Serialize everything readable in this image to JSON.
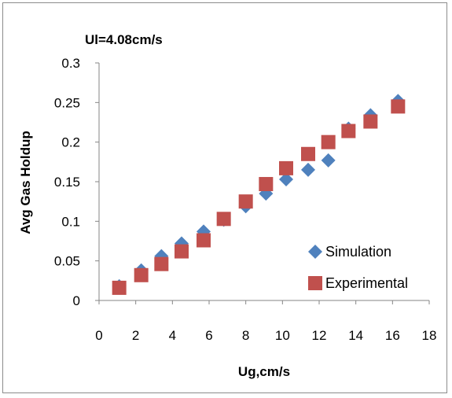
{
  "chart_data": {
    "type": "scatter",
    "title": "Ul=4.08cm/s",
    "xlabel": "Ug,cm/s",
    "ylabel": "Avg Gas Holdup",
    "xlim": [
      0,
      18
    ],
    "ylim": [
      0,
      0.3
    ],
    "x_ticks": [
      "0",
      "2",
      "4",
      "6",
      "8",
      "10",
      "12",
      "14",
      "16",
      "18"
    ],
    "y_ticks": [
      "0",
      "0.05",
      "0.1",
      "0.15",
      "0.2",
      "0.25",
      "0.3"
    ],
    "grid": false,
    "legend_position": "bottom-right",
    "series": [
      {
        "name": "Simulation",
        "marker": "diamond",
        "color": "#4F81BD",
        "points": [
          {
            "x": 1.1,
            "y": 0.018
          },
          {
            "x": 2.3,
            "y": 0.038
          },
          {
            "x": 3.4,
            "y": 0.056
          },
          {
            "x": 4.5,
            "y": 0.072
          },
          {
            "x": 5.7,
            "y": 0.087
          },
          {
            "x": 6.8,
            "y": 0.102
          },
          {
            "x": 8.0,
            "y": 0.119
          },
          {
            "x": 9.1,
            "y": 0.135
          },
          {
            "x": 10.2,
            "y": 0.153
          },
          {
            "x": 11.4,
            "y": 0.165
          },
          {
            "x": 12.5,
            "y": 0.177
          },
          {
            "x": 13.6,
            "y": 0.217
          },
          {
            "x": 14.8,
            "y": 0.234
          },
          {
            "x": 16.3,
            "y": 0.252
          }
        ]
      },
      {
        "name": "Experimental",
        "marker": "square",
        "color": "#C0504D",
        "points": [
          {
            "x": 1.1,
            "y": 0.016
          },
          {
            "x": 2.3,
            "y": 0.032
          },
          {
            "x": 3.4,
            "y": 0.046
          },
          {
            "x": 4.5,
            "y": 0.062
          },
          {
            "x": 5.7,
            "y": 0.076
          },
          {
            "x": 6.8,
            "y": 0.103
          },
          {
            "x": 8.0,
            "y": 0.125
          },
          {
            "x": 9.1,
            "y": 0.147
          },
          {
            "x": 10.2,
            "y": 0.167
          },
          {
            "x": 11.4,
            "y": 0.185
          },
          {
            "x": 12.5,
            "y": 0.2
          },
          {
            "x": 13.6,
            "y": 0.214
          },
          {
            "x": 14.8,
            "y": 0.226
          },
          {
            "x": 16.3,
            "y": 0.245
          }
        ]
      }
    ]
  }
}
